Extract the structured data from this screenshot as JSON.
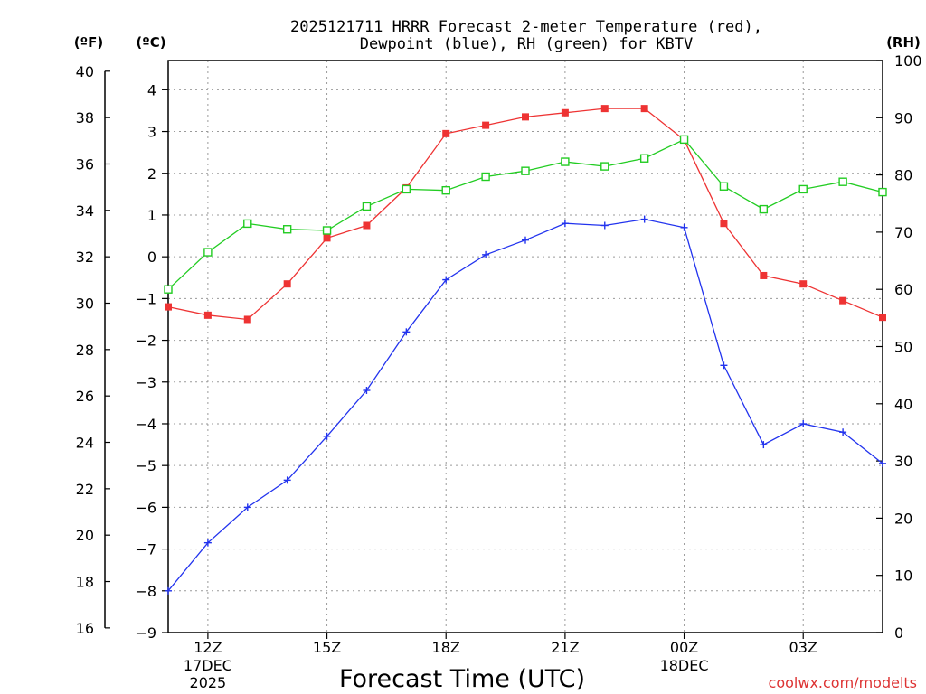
{
  "chart_data": {
    "type": "line",
    "title_line1": "2025121711 HRRR Forecast 2-meter Temperature (red),",
    "title_line2": "Dewpoint (blue), RH (green) for KBTV",
    "xlabel": "Forecast Time (UTC)",
    "unit_left_f": "(ºF)",
    "unit_left_c": "(ºC)",
    "unit_right": "(RH)",
    "credit": "coolwx.com/modelts",
    "x_hours": [
      11,
      12,
      13,
      14,
      15,
      16,
      17,
      18,
      19,
      20,
      21,
      22,
      23,
      24,
      25,
      26,
      27,
      28,
      29
    ],
    "xlim": [
      11,
      29
    ],
    "x_ticks": [
      {
        "hour": 12,
        "label": "12Z"
      },
      {
        "hour": 15,
        "label": "15Z"
      },
      {
        "hour": 18,
        "label": "18Z"
      },
      {
        "hour": 21,
        "label": "21Z"
      },
      {
        "hour": 24,
        "label": "00Z"
      },
      {
        "hour": 27,
        "label": "03Z"
      }
    ],
    "date_labels": [
      {
        "hour": 12,
        "lines": [
          "17DEC",
          "2025"
        ]
      },
      {
        "hour": 24,
        "lines": [
          "18DEC"
        ]
      }
    ],
    "celsius_ticks": [
      4,
      3,
      2,
      1,
      0,
      -1,
      -2,
      -3,
      -4,
      -5,
      -6,
      -7,
      -8,
      -9
    ],
    "fahrenheit_ticks": [
      40,
      38,
      36,
      34,
      32,
      30,
      28,
      26,
      24,
      22,
      20,
      18,
      16
    ],
    "rh_ticks": [
      100,
      90,
      80,
      70,
      60,
      50,
      40,
      30,
      20,
      10,
      0
    ],
    "ylim_c": [
      -9,
      4.7
    ],
    "ylim_rh": [
      0,
      100
    ],
    "series": [
      {
        "name": "Temperature",
        "color": "#ee3333",
        "axis": "c",
        "marker": "filled-square",
        "values": [
          -1.2,
          -1.4,
          -1.5,
          -0.65,
          0.45,
          0.75,
          1.65,
          2.95,
          3.15,
          3.35,
          3.45,
          3.55,
          3.55,
          2.8,
          0.8,
          -0.45,
          -0.65,
          -1.05,
          -1.45
        ]
      },
      {
        "name": "Dewpoint",
        "color": "#2233ee",
        "axis": "c",
        "marker": "plus",
        "values": [
          -8.0,
          -6.85,
          -6.0,
          -5.35,
          -4.3,
          -3.2,
          -1.8,
          -0.55,
          0.05,
          0.4,
          0.8,
          0.75,
          0.9,
          0.7,
          -2.6,
          -4.5,
          -4.0,
          -4.2,
          -4.95
        ]
      },
      {
        "name": "RH",
        "color": "#22cc22",
        "axis": "rh",
        "marker": "open-square",
        "values": [
          60,
          66.5,
          71.5,
          70.5,
          70.3,
          74.5,
          77.5,
          77.3,
          79.7,
          80.7,
          82.3,
          81.5,
          82.9,
          86.2,
          78,
          74,
          77.5,
          78.8,
          77
        ]
      }
    ]
  }
}
